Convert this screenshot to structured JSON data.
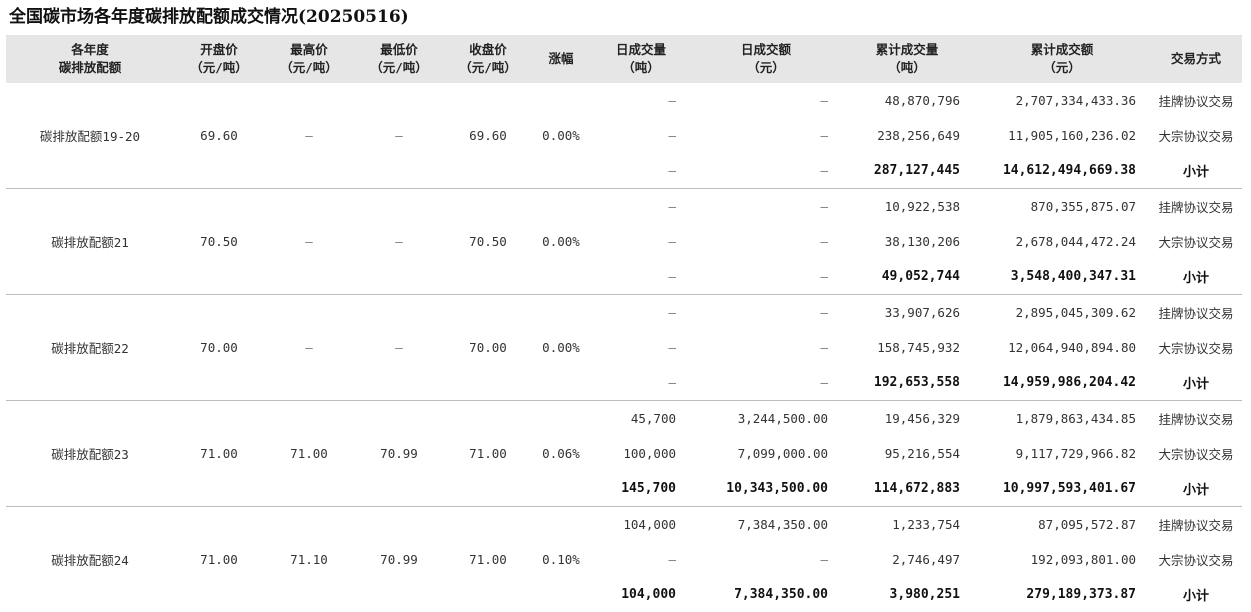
{
  "title": "全国碳市场各年度碳排放配额成交情况(20250516)",
  "headers": {
    "allowance": [
      "各年度",
      "碳排放配额"
    ],
    "open": [
      "开盘价",
      "（元/吨）"
    ],
    "high": [
      "最高价",
      "（元/吨）"
    ],
    "low": [
      "最低价",
      "（元/吨）"
    ],
    "close": [
      "收盘价",
      "（元/吨）"
    ],
    "change": [
      "涨幅"
    ],
    "day_volume": [
      "日成交量",
      "（吨）"
    ],
    "day_amount": [
      "日成交额",
      "（元）"
    ],
    "cum_volume": [
      "累计成交量",
      "（吨）"
    ],
    "cum_amount": [
      "累计成交额",
      "（元）"
    ],
    "method": [
      "交易方式"
    ]
  },
  "groups": [
    {
      "name": "碳排放配额19-20",
      "open": "69.60",
      "high": "–",
      "low": "–",
      "close": "69.60",
      "change": "0.00%",
      "rows": [
        {
          "day_volume": "–",
          "day_amount": "–",
          "cum_volume": "48,870,796",
          "cum_amount": "2,707,334,433.36",
          "method": "挂牌协议交易"
        },
        {
          "day_volume": "–",
          "day_amount": "–",
          "cum_volume": "238,256,649",
          "cum_amount": "11,905,160,236.02",
          "method": "大宗协议交易"
        },
        {
          "day_volume": "–",
          "day_amount": "–",
          "cum_volume": "287,127,445",
          "cum_amount": "14,612,494,669.38",
          "method": "小计"
        }
      ]
    },
    {
      "name": "碳排放配额21",
      "open": "70.50",
      "high": "–",
      "low": "–",
      "close": "70.50",
      "change": "0.00%",
      "rows": [
        {
          "day_volume": "–",
          "day_amount": "–",
          "cum_volume": "10,922,538",
          "cum_amount": "870,355,875.07",
          "method": "挂牌协议交易"
        },
        {
          "day_volume": "–",
          "day_amount": "–",
          "cum_volume": "38,130,206",
          "cum_amount": "2,678,044,472.24",
          "method": "大宗协议交易"
        },
        {
          "day_volume": "–",
          "day_amount": "–",
          "cum_volume": "49,052,744",
          "cum_amount": "3,548,400,347.31",
          "method": "小计"
        }
      ]
    },
    {
      "name": "碳排放配额22",
      "open": "70.00",
      "high": "–",
      "low": "–",
      "close": "70.00",
      "change": "0.00%",
      "rows": [
        {
          "day_volume": "–",
          "day_amount": "–",
          "cum_volume": "33,907,626",
          "cum_amount": "2,895,045,309.62",
          "method": "挂牌协议交易"
        },
        {
          "day_volume": "–",
          "day_amount": "–",
          "cum_volume": "158,745,932",
          "cum_amount": "12,064,940,894.80",
          "method": "大宗协议交易"
        },
        {
          "day_volume": "–",
          "day_amount": "–",
          "cum_volume": "192,653,558",
          "cum_amount": "14,959,986,204.42",
          "method": "小计"
        }
      ]
    },
    {
      "name": "碳排放配额23",
      "open": "71.00",
      "high": "71.00",
      "low": "70.99",
      "close": "71.00",
      "change": "0.06%",
      "rows": [
        {
          "day_volume": "45,700",
          "day_amount": "3,244,500.00",
          "cum_volume": "19,456,329",
          "cum_amount": "1,879,863,434.85",
          "method": "挂牌协议交易"
        },
        {
          "day_volume": "100,000",
          "day_amount": "7,099,000.00",
          "cum_volume": "95,216,554",
          "cum_amount": "9,117,729,966.82",
          "method": "大宗协议交易"
        },
        {
          "day_volume": "145,700",
          "day_amount": "10,343,500.00",
          "cum_volume": "114,672,883",
          "cum_amount": "10,997,593,401.67",
          "method": "小计"
        }
      ]
    },
    {
      "name": "碳排放配额24",
      "open": "71.00",
      "high": "71.10",
      "low": "70.99",
      "close": "71.00",
      "change": "0.10%",
      "rows": [
        {
          "day_volume": "104,000",
          "day_amount": "7,384,350.00",
          "cum_volume": "1,233,754",
          "cum_amount": "87,095,572.87",
          "method": "挂牌协议交易"
        },
        {
          "day_volume": "–",
          "day_amount": "–",
          "cum_volume": "2,746,497",
          "cum_amount": "192,093,801.00",
          "method": "大宗协议交易"
        },
        {
          "day_volume": "104,000",
          "day_amount": "7,384,350.00",
          "cum_volume": "3,980,251",
          "cum_amount": "279,189,373.87",
          "method": "小计"
        }
      ]
    }
  ]
}
